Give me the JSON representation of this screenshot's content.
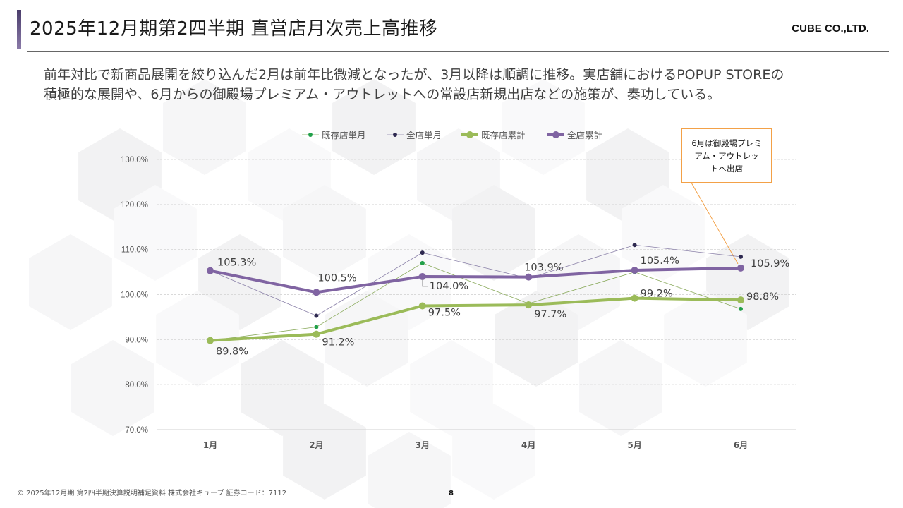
{
  "header": {
    "title": "2025年12月期第2四半期 直営店月次売上高推移",
    "company": "CUBE CO.,LTD."
  },
  "summary": {
    "line1": "前年対比で新商品展開を絞り込んだ2月は前年比微減となったが、3月以降は順調に推移。実店舗におけるPOPUP STOREの",
    "line2": "積極的な展開や、6月からの御殿場プレミアム・アウトレットへの常設店新規出店などの施策が、奏功している。"
  },
  "callout": {
    "text": "6月は御殿場プレミアム・アウトレットへ出店"
  },
  "footer": {
    "text": "© 2025年12月期 第2四半期決算説明補足資料 株式会社キューブ 証券コード：7112",
    "page": "8"
  },
  "colors": {
    "accent_purple": "#8064a2",
    "accent_green": "#9bbb59",
    "existing_monthly_marker": "#22a04a",
    "all_monthly_marker": "#2e2950",
    "callout_border": "#f3a147"
  },
  "chart_data": {
    "type": "line",
    "categories": [
      "1月",
      "2月",
      "3月",
      "4月",
      "5月",
      "6月"
    ],
    "ylim": [
      70,
      130
    ],
    "yticks": [
      70,
      80,
      90,
      100,
      110,
      120,
      130
    ],
    "ytick_labels": [
      "70.0%",
      "80.0%",
      "90.0%",
      "100.0%",
      "110.0%",
      "120.0%",
      "130.0%"
    ],
    "grid": true,
    "legend_position": "top",
    "series": [
      {
        "name": "既存店単月",
        "style": "thin",
        "color": "#22a04a",
        "line_color": "#8aaa5c",
        "values": [
          89.8,
          92.8,
          107.0,
          98.0,
          105.0,
          96.8
        ],
        "labels": []
      },
      {
        "name": "全店単月",
        "style": "thin",
        "color": "#2e2950",
        "line_color": "#8a80a8",
        "values": [
          105.3,
          95.3,
          109.3,
          103.6,
          111.0,
          108.4
        ],
        "labels": []
      },
      {
        "name": "既存店累計",
        "style": "thick",
        "color": "#9bbb59",
        "line_color": "#9bbb59",
        "values": [
          89.8,
          91.2,
          97.5,
          97.7,
          99.2,
          98.8
        ],
        "labels": [
          "89.8%",
          "91.2%",
          "97.5%",
          "97.7%",
          "99.2%",
          "98.8%"
        ]
      },
      {
        "name": "全店累計",
        "style": "thick",
        "color": "#8064a2",
        "line_color": "#8064a2",
        "values": [
          105.3,
          100.5,
          104.0,
          103.9,
          105.4,
          105.9
        ],
        "labels": [
          "105.3%",
          "100.5%",
          "104.0%",
          "103.9%",
          "105.4%",
          "105.9%"
        ]
      }
    ]
  }
}
